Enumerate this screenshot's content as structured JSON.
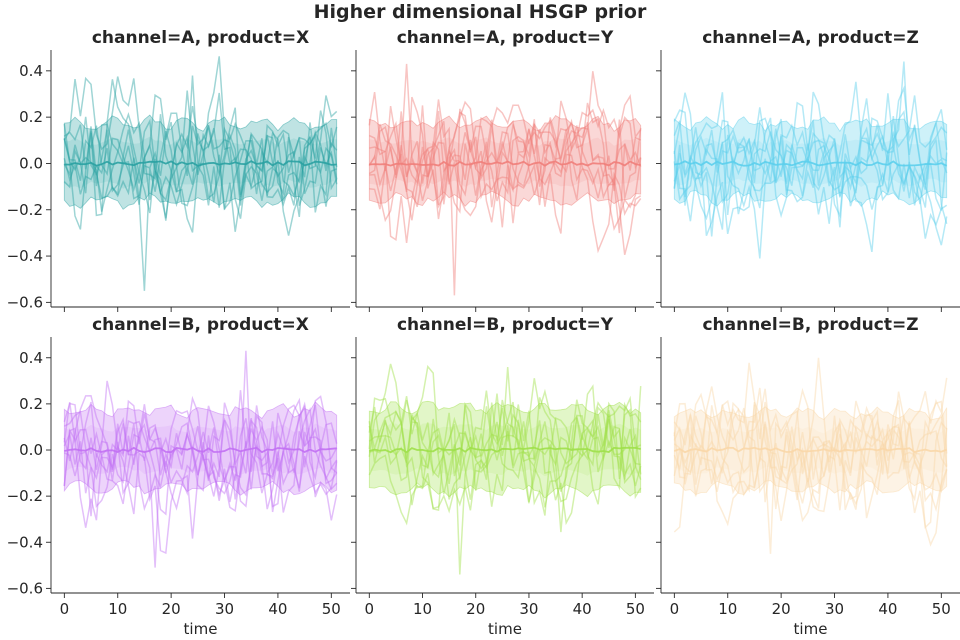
{
  "chart_data": {
    "type": "line",
    "title": "Higher dimensional HSGP prior",
    "xlabel": "time",
    "ylabel": "",
    "xlim": [
      -2.5,
      53.5
    ],
    "ylim": [
      -0.62,
      0.49
    ],
    "x_ticks": [
      0,
      10,
      20,
      30,
      40,
      50
    ],
    "x_tick_labels": [
      "0",
      "10",
      "20",
      "30",
      "40",
      "50"
    ],
    "y_ticks": [
      -0.6,
      -0.4,
      -0.2,
      0.0,
      0.2,
      0.4
    ],
    "y_tick_labels": [
      "−0.6",
      "−0.4",
      "−0.2",
      "0.0",
      "0.2",
      "0.4"
    ],
    "grid": false,
    "n_timepoints": 52,
    "n_sample_lines": 8,
    "panels": [
      {
        "title": "channel=A, product=X",
        "color": "#2aa1a2",
        "band_lower": -0.18,
        "band_upper": 0.19,
        "line_min": -0.55,
        "line_max": 0.38,
        "mean": 0.0
      },
      {
        "title": "channel=A, product=Y",
        "color": "#f07e7a",
        "band_lower": -0.17,
        "band_upper": 0.19,
        "line_min": -0.57,
        "line_max": 0.43,
        "mean": 0.0
      },
      {
        "title": "channel=A, product=Z",
        "color": "#5ccfec",
        "band_lower": -0.17,
        "band_upper": 0.19,
        "line_min": -0.41,
        "line_max": 0.44,
        "mean": 0.0
      },
      {
        "title": "channel=B, product=X",
        "color": "#c270f3",
        "band_lower": -0.18,
        "band_upper": 0.19,
        "line_min": -0.51,
        "line_max": 0.43,
        "mean": 0.0
      },
      {
        "title": "channel=B, product=Y",
        "color": "#9fe04a",
        "band_lower": -0.19,
        "band_upper": 0.2,
        "line_min": -0.54,
        "line_max": 0.36,
        "mean": 0.0
      },
      {
        "title": "channel=B, product=Z",
        "color": "#f9d7a8",
        "band_lower": -0.18,
        "band_upper": 0.18,
        "line_min": -0.45,
        "line_max": 0.4,
        "mean": 0.0
      }
    ]
  }
}
